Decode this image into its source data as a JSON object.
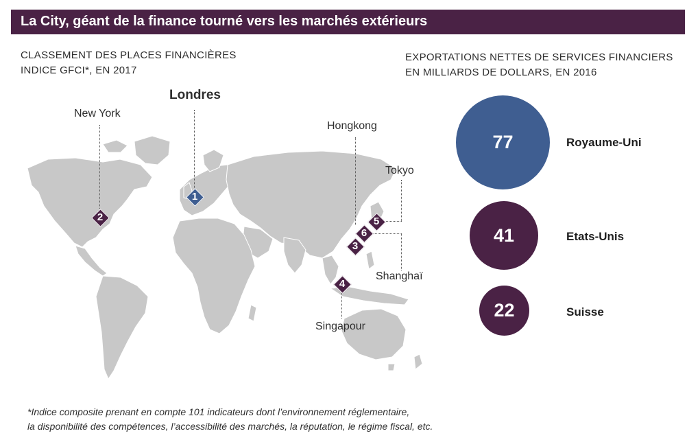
{
  "title": "La City, géant de la finance tourné vers les marchés extérieurs",
  "left_panel": {
    "subtitle_line1": "CLASSEMENT DES PLACES FINANCIÈRES",
    "subtitle_line2": "INDICE GFCI*, EN 2017",
    "cities": [
      {
        "rank": "1",
        "name": "Londres"
      },
      {
        "rank": "2",
        "name": "New York"
      },
      {
        "rank": "3",
        "name": "Hongkong"
      },
      {
        "rank": "4",
        "name": "Singapour"
      },
      {
        "rank": "5",
        "name": "Tokyo"
      },
      {
        "rank": "6",
        "name": "Shanghaï"
      }
    ]
  },
  "right_panel": {
    "subtitle_line1": "EXPORTATIONS NETTES DE SERVICES FINANCIERS",
    "subtitle_line2": "EN MILLIARDS DE DOLLARS, EN 2016",
    "items": [
      {
        "value": "77",
        "label": "Royaume-Uni",
        "color": "#3f5e91"
      },
      {
        "value": "41",
        "label": "Etats-Unis",
        "color": "#4a2245"
      },
      {
        "value": "22",
        "label": "Suisse",
        "color": "#4a2245"
      }
    ]
  },
  "footnote_line1": "*Indice composite prenant en compte 101 indicateurs dont l’environnement réglementaire,",
  "footnote_line2": "la disponibilité des compétences, l’accessibilité des marchés, la réputation, le régime fiscal, etc.",
  "colors": {
    "title_bg": "#4a2245",
    "accent_blue": "#3f5e91",
    "accent_purple": "#4a2245",
    "land": "#c8c8c8"
  }
}
